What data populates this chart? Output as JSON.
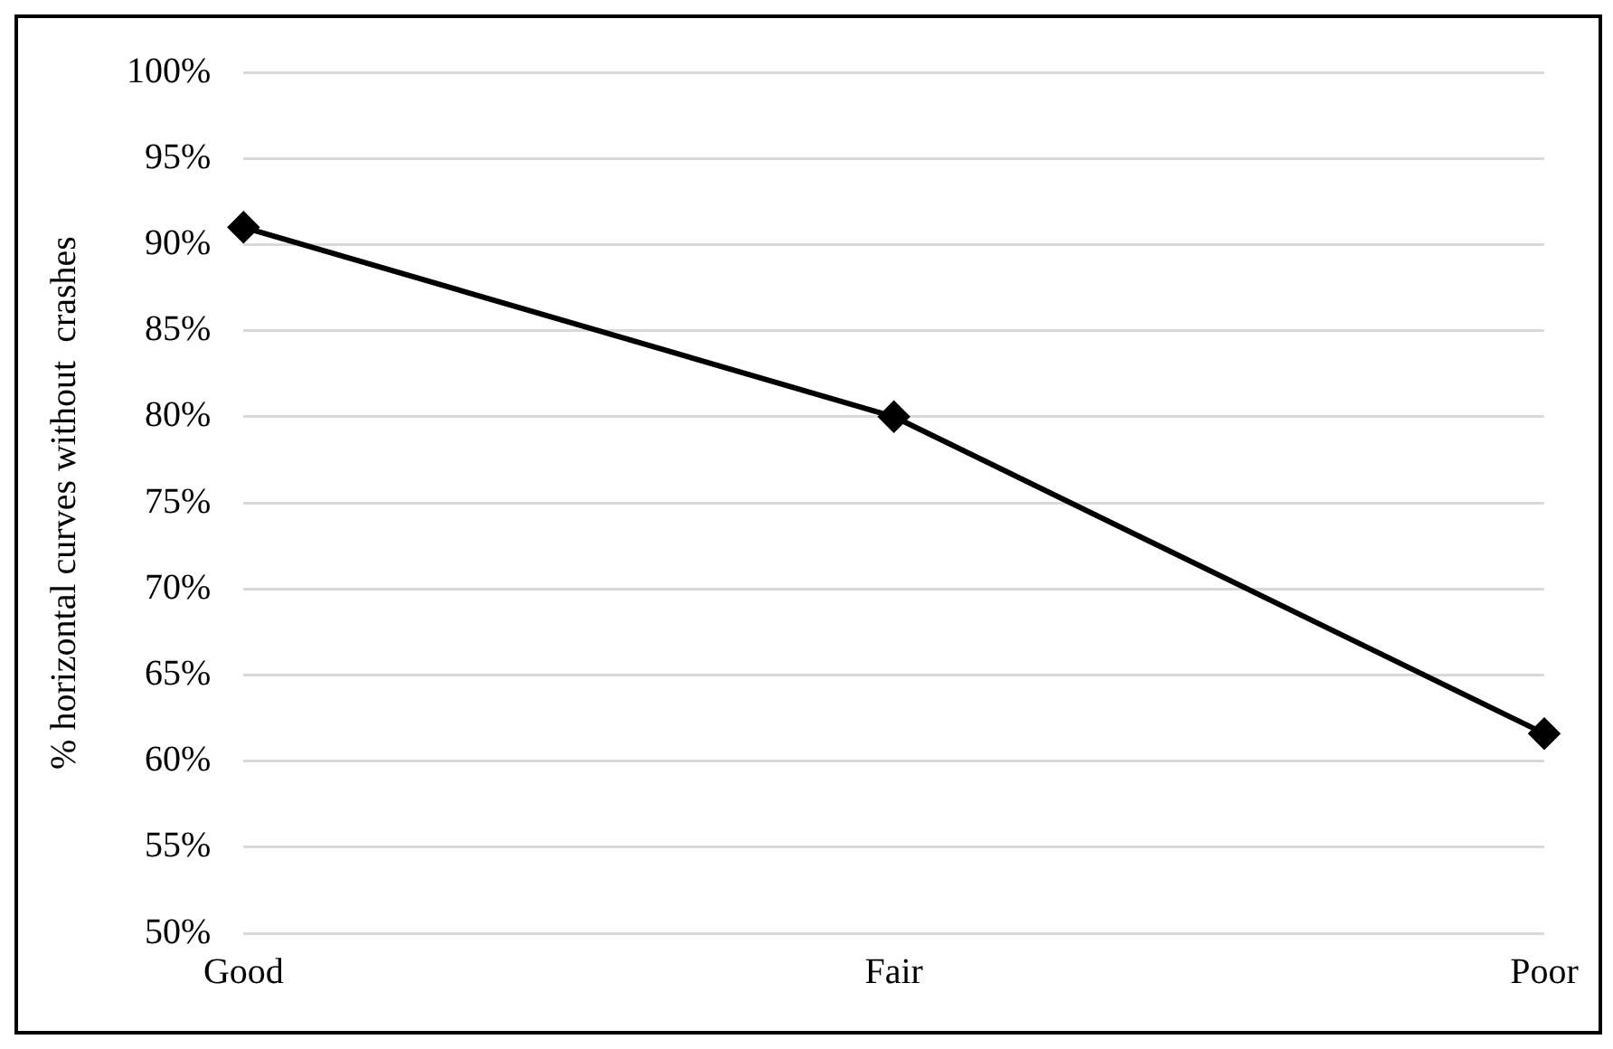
{
  "chart_data": {
    "type": "line",
    "ylabel": "% horizontal curves without  crashes",
    "categories": [
      "Good",
      "Fair",
      "Poor"
    ],
    "series": [
      {
        "color": "#000000",
        "values": [
          91,
          80,
          61.6
        ]
      }
    ],
    "ylim": [
      50,
      100
    ],
    "yticks": [
      {
        "value": 50,
        "label": "50%"
      },
      {
        "value": 55,
        "label": "55%"
      },
      {
        "value": 60,
        "label": "60%"
      },
      {
        "value": 65,
        "label": "65%"
      },
      {
        "value": 70,
        "label": "70%"
      },
      {
        "value": 75,
        "label": "75%"
      },
      {
        "value": 80,
        "label": "80%"
      },
      {
        "value": 85,
        "label": "85%"
      },
      {
        "value": 90,
        "label": "90%"
      },
      {
        "value": 95,
        "label": "95%"
      },
      {
        "value": 100,
        "label": "100%"
      }
    ],
    "grid": "y",
    "marker": "diamond",
    "line_style": "solid",
    "legend": false
  }
}
